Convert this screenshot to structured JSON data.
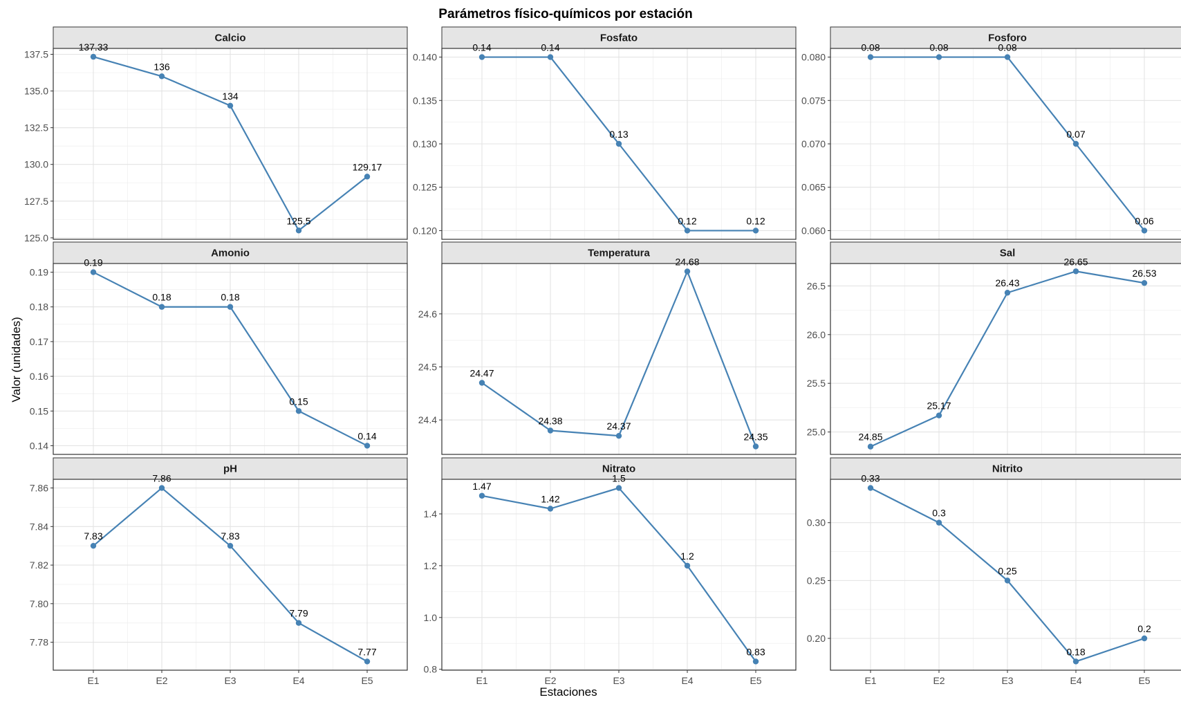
{
  "title": "Parámetros físico-químicos por estación",
  "xlabel": "Estaciones",
  "ylabel": "Valor (unidades)",
  "line_color": "#4682B4",
  "chart_data": {
    "type": "line",
    "title": "Parámetros físico-químicos por estación",
    "xlabel": "Estaciones",
    "ylabel": "Valor (unidades)",
    "categories": [
      "E1",
      "E2",
      "E3",
      "E4",
      "E5"
    ],
    "grid": true,
    "panels": [
      {
        "name": "Calcio",
        "values": [
          137.33,
          136,
          134,
          125.5,
          129.17
        ],
        "labels": [
          "137.33",
          "136",
          "134",
          "125.5",
          "129.17"
        ],
        "ylim": [
          124.9,
          137.9
        ],
        "ticks": [
          125.0,
          127.5,
          130.0,
          132.5,
          135.0,
          137.5
        ],
        "tick_labels": [
          "125.0",
          "127.5",
          "130.0",
          "132.5",
          "135.0",
          "137.5"
        ]
      },
      {
        "name": "Fosfato",
        "values": [
          0.14,
          0.14,
          0.13,
          0.12,
          0.12
        ],
        "labels": [
          "0.14",
          "0.14",
          "0.13",
          "0.12",
          "0.12"
        ],
        "ylim": [
          0.119,
          0.141
        ],
        "ticks": [
          0.12,
          0.125,
          0.13,
          0.135,
          0.14
        ],
        "tick_labels": [
          "0.120",
          "0.125",
          "0.130",
          "0.135",
          "0.140"
        ]
      },
      {
        "name": "Fosforo",
        "values": [
          0.08,
          0.08,
          0.08,
          0.07,
          0.06
        ],
        "labels": [
          "0.08",
          "0.08",
          "0.08",
          "0.07",
          "0.06"
        ],
        "ylim": [
          0.059,
          0.081
        ],
        "ticks": [
          0.06,
          0.065,
          0.07,
          0.075,
          0.08
        ],
        "tick_labels": [
          "0.060",
          "0.065",
          "0.070",
          "0.075",
          "0.080"
        ]
      },
      {
        "name": "Amonio",
        "values": [
          0.19,
          0.18,
          0.18,
          0.15,
          0.14
        ],
        "labels": [
          "0.19",
          "0.18",
          "0.18",
          "0.15",
          "0.14"
        ],
        "ylim": [
          0.1375,
          0.1925
        ],
        "ticks": [
          0.14,
          0.15,
          0.16,
          0.17,
          0.18,
          0.19
        ],
        "tick_labels": [
          "0.14",
          "0.15",
          "0.16",
          "0.17",
          "0.18",
          "0.19"
        ]
      },
      {
        "name": "Temperatura",
        "values": [
          24.47,
          24.38,
          24.37,
          24.68,
          24.35
        ],
        "labels": [
          "24.47",
          "24.38",
          "24.37",
          "24.68",
          "24.35"
        ],
        "ylim": [
          24.335,
          24.695
        ],
        "ticks": [
          24.4,
          24.5,
          24.6
        ],
        "tick_labels": [
          "24.4",
          "24.5",
          "24.6"
        ]
      },
      {
        "name": "Sal",
        "values": [
          24.85,
          25.17,
          26.43,
          26.65,
          26.53
        ],
        "labels": [
          "24.85",
          "25.17",
          "26.43",
          "26.65",
          "26.53"
        ],
        "ylim": [
          24.77,
          26.73
        ],
        "ticks": [
          25.0,
          25.5,
          26.0,
          26.5
        ],
        "tick_labels": [
          "25.0",
          "25.5",
          "26.0",
          "26.5"
        ]
      },
      {
        "name": "pH",
        "values": [
          7.83,
          7.86,
          7.83,
          7.79,
          7.77
        ],
        "labels": [
          "7.83",
          "7.86",
          "7.83",
          "7.79",
          "7.77"
        ],
        "ylim": [
          7.7655,
          7.8645
        ],
        "ticks": [
          7.78,
          7.8,
          7.82,
          7.84,
          7.86
        ],
        "tick_labels": [
          "7.78",
          "7.80",
          "7.82",
          "7.84",
          "7.86"
        ]
      },
      {
        "name": "Nitrato",
        "values": [
          1.47,
          1.42,
          1.5,
          1.2,
          0.83
        ],
        "labels": [
          "1.47",
          "1.42",
          "1.5",
          "1.2",
          "0.83"
        ],
        "ylim": [
          0.7965,
          1.5335
        ],
        "ticks": [
          0.8,
          1.0,
          1.2,
          1.4
        ],
        "tick_labels": [
          "0.8",
          "1.0",
          "1.2",
          "1.4"
        ]
      },
      {
        "name": "Nitrito",
        "values": [
          0.33,
          0.3,
          0.25,
          0.18,
          0.2
        ],
        "labels": [
          "0.33",
          "0.3",
          "0.25",
          "0.18",
          "0.2"
        ],
        "ylim": [
          0.1725,
          0.3375
        ],
        "ticks": [
          0.2,
          0.25,
          0.3
        ],
        "tick_labels": [
          "0.20",
          "0.25",
          "0.30"
        ]
      }
    ]
  }
}
